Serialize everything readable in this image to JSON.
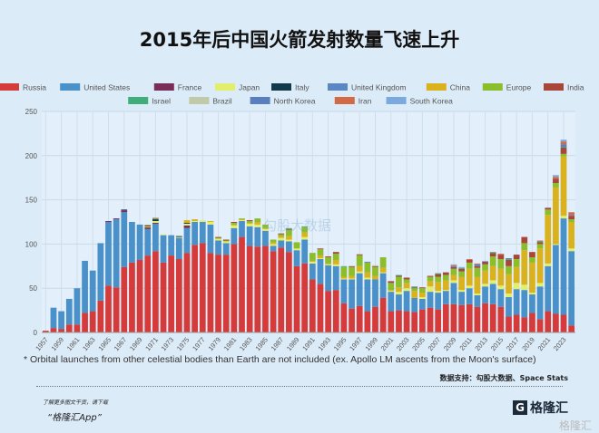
{
  "title": "2015年后中国火箭发射数量飞速上升",
  "note": "* Orbital launches from other celestial bodies than Earth are not included (ex. Apollo LM ascents from the Moon's surface)",
  "source": "数据支持：勾股大数据、Space Stats",
  "promo_line1": "了解更多图文干货，请下载",
  "promo_line2": "“格隆汇App”",
  "logo_text": "格隆汇",
  "watermark": "勾股大数据",
  "chart_data": {
    "type": "bar",
    "stacked": true,
    "title": "",
    "xlabel": "",
    "ylabel": "",
    "ylim": [
      0,
      250
    ],
    "yticks": [
      0,
      50,
      100,
      150,
      200,
      250
    ],
    "grid": true,
    "legend_position": "top",
    "x_start": 1957,
    "x_end": 2024,
    "xtick_labels": [
      "1957",
      "1959",
      "1961",
      "1963",
      "1965",
      "1967",
      "1969",
      "1971",
      "1973",
      "1975",
      "1977",
      "1979",
      "1981",
      "1983",
      "1985",
      "1987",
      "1989",
      "1991",
      "1993",
      "1995",
      "1997",
      "1999",
      "2001",
      "2003",
      "2005",
      "2007",
      "2009",
      "2011",
      "2013",
      "2015",
      "2017",
      "2019",
      "2021",
      "2023"
    ],
    "series": [
      {
        "name": "Russia",
        "color": "#d63b3b",
        "values": [
          2,
          5,
          4,
          9,
          9,
          22,
          24,
          36,
          53,
          51,
          74,
          79,
          82,
          87,
          92,
          79,
          87,
          83,
          90,
          99,
          101,
          90,
          88,
          88,
          100,
          108,
          98,
          97,
          98,
          92,
          96,
          91,
          75,
          78,
          60,
          55,
          47,
          48,
          33,
          27,
          30,
          24,
          29,
          39,
          24,
          25,
          24,
          23,
          26,
          28,
          26,
          32,
          32,
          31,
          32,
          29,
          33,
          32,
          29,
          18,
          20,
          17,
          22,
          15,
          24,
          21,
          20,
          8
        ]
      },
      {
        "name": "United States",
        "color": "#4a90c9",
        "values": [
          0,
          23,
          20,
          29,
          41,
          59,
          46,
          65,
          72,
          77,
          62,
          46,
          40,
          30,
          31,
          31,
          23,
          24,
          28,
          26,
          24,
          32,
          16,
          13,
          18,
          18,
          22,
          22,
          17,
          6,
          8,
          12,
          18,
          27,
          18,
          28,
          29,
          27,
          27,
          33,
          37,
          36,
          31,
          28,
          22,
          18,
          23,
          16,
          12,
          18,
          19,
          15,
          24,
          15,
          18,
          13,
          19,
          23,
          20,
          22,
          29,
          31,
          21,
          37,
          51,
          78,
          109,
          84
        ]
      },
      {
        "name": "France",
        "color": "#7b2d5a",
        "by_year": {
          "1965": 1,
          "1966": 1,
          "1967": 2,
          "1970": 2,
          "1971": 1,
          "1975": 3
        }
      },
      {
        "name": "Japan",
        "color": "#e2ef6a",
        "values": [
          0,
          0,
          0,
          0,
          0,
          0,
          0,
          0,
          0,
          0,
          0,
          0,
          0,
          1,
          2,
          1,
          0,
          1,
          2,
          1,
          2,
          3,
          2,
          2,
          3,
          1,
          3,
          3,
          2,
          2,
          3,
          2,
          2,
          3,
          2,
          1,
          1,
          2,
          1,
          1,
          2,
          2,
          0,
          1,
          1,
          3,
          3,
          0,
          2,
          6,
          2,
          1,
          3,
          2,
          3,
          2,
          3,
          4,
          4,
          4,
          7,
          6,
          2,
          4,
          3,
          1,
          3,
          3
        ]
      },
      {
        "name": "Italy",
        "color": "#13394a",
        "by_year": {
          "1967": 1,
          "1970": 1,
          "1971": 2,
          "1974": 1,
          "1975": 1
        }
      },
      {
        "name": "United Kingdom",
        "color": "#5a86c4",
        "by_year": {
          "1971": 1
        }
      },
      {
        "name": "China",
        "color": "#d9b21e",
        "values": [
          0,
          0,
          0,
          0,
          0,
          0,
          0,
          0,
          0,
          0,
          0,
          0,
          0,
          1,
          1,
          0,
          0,
          0,
          3,
          2,
          0,
          1,
          0,
          0,
          1,
          1,
          1,
          3,
          1,
          2,
          2,
          4,
          0,
          5,
          1,
          3,
          1,
          5,
          2,
          3,
          6,
          6,
          4,
          5,
          1,
          5,
          6,
          8,
          5,
          6,
          10,
          11,
          6,
          15,
          19,
          19,
          15,
          16,
          19,
          22,
          18,
          39,
          34,
          39,
          55,
          64,
          67,
          30
        ]
      },
      {
        "name": "Europe",
        "color": "#8cbd2a",
        "values": [
          0,
          0,
          0,
          0,
          0,
          0,
          0,
          0,
          0,
          0,
          0,
          0,
          0,
          0,
          0,
          0,
          0,
          0,
          0,
          0,
          0,
          0,
          1,
          1,
          2,
          1,
          2,
          4,
          4,
          3,
          2,
          7,
          7,
          6,
          9,
          7,
          7,
          7,
          11,
          10,
          12,
          11,
          10,
          12,
          8,
          12,
          4,
          3,
          5,
          5,
          6,
          6,
          7,
          6,
          7,
          10,
          7,
          11,
          11,
          9,
          9,
          8,
          6,
          5,
          6,
          5,
          3,
          3
        ]
      },
      {
        "name": "India",
        "color": "#a8463a",
        "values": [
          0,
          0,
          0,
          0,
          0,
          0,
          0,
          0,
          0,
          0,
          0,
          0,
          0,
          0,
          0,
          0,
          0,
          0,
          0,
          0,
          0,
          0,
          1,
          1,
          1,
          0,
          1,
          0,
          0,
          0,
          1,
          1,
          0,
          0,
          0,
          1,
          1,
          2,
          0,
          1,
          1,
          0,
          1,
          0,
          2,
          1,
          2,
          1,
          1,
          1,
          3,
          3,
          2,
          3,
          3,
          2,
          3,
          4,
          5,
          7,
          5,
          7,
          6,
          2,
          2,
          5,
          7,
          4
        ]
      },
      {
        "name": "Israel",
        "color": "#3fae7a",
        "by_year": {
          "1988": 1,
          "1990": 1,
          "1995": 1,
          "2002": 1,
          "2004": 1,
          "2007": 1,
          "2010": 1,
          "2014": 1,
          "2016": 1,
          "2020": 1,
          "2023": 1
        }
      },
      {
        "name": "Brazil",
        "color": "#c0c9a8",
        "by_year": {
          "1997": 1,
          "1999": 1
        }
      },
      {
        "name": "North Korea",
        "color": "#5a7fbf",
        "by_year": {
          "1998": 1,
          "2009": 1,
          "2012": 2,
          "2016": 1,
          "2023": 3,
          "2024": 1
        }
      },
      {
        "name": "Iran",
        "color": "#d46a45",
        "by_year": {
          "2009": 1,
          "2011": 1,
          "2012": 1,
          "2015": 1,
          "2020": 1,
          "2022": 2,
          "2023": 3,
          "2024": 3
        }
      },
      {
        "name": "South Korea",
        "color": "#7aa9e0",
        "by_year": {
          "2009": 1,
          "2010": 1,
          "2013": 1,
          "2022": 2,
          "2023": 2
        }
      }
    ]
  }
}
